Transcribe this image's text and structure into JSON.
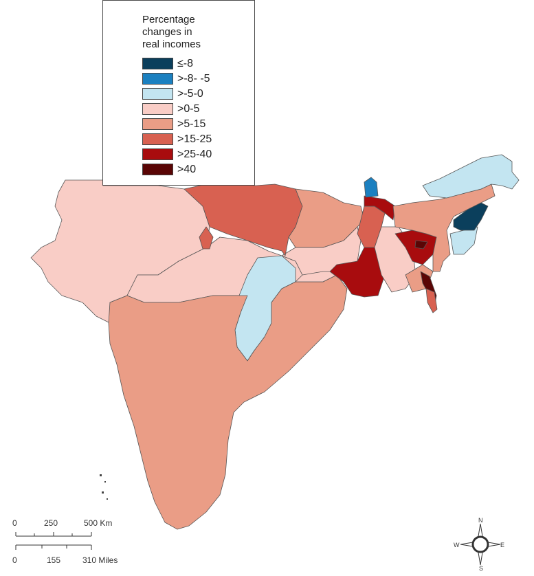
{
  "legend": {
    "title_lines": [
      "Percentage",
      "changes in",
      "real incomes"
    ],
    "items": [
      {
        "label": "≤-8",
        "color": "#0b3f5c"
      },
      {
        "label": ">-8- -5",
        "color": "#1b80c0"
      },
      {
        "label": ">-5-0",
        "color": "#c3e5f1"
      },
      {
        "label": ">0-5",
        "color": "#f9cdc6"
      },
      {
        "label": ">5-15",
        "color": "#ea9d86"
      },
      {
        "label": ">15-25",
        "color": "#d86151"
      },
      {
        "label": ">25-40",
        "color": "#a80c0e"
      },
      {
        "label": ">40",
        "color": "#5a0505"
      }
    ]
  },
  "scale_bar": {
    "km_ticks": [
      "0",
      "250",
      "500 Km"
    ],
    "mile_ticks": [
      "0",
      "155",
      "310 Miles"
    ]
  },
  "north_arrow": {
    "n": "N",
    "s": "S",
    "e": "E",
    "w": "W"
  }
}
